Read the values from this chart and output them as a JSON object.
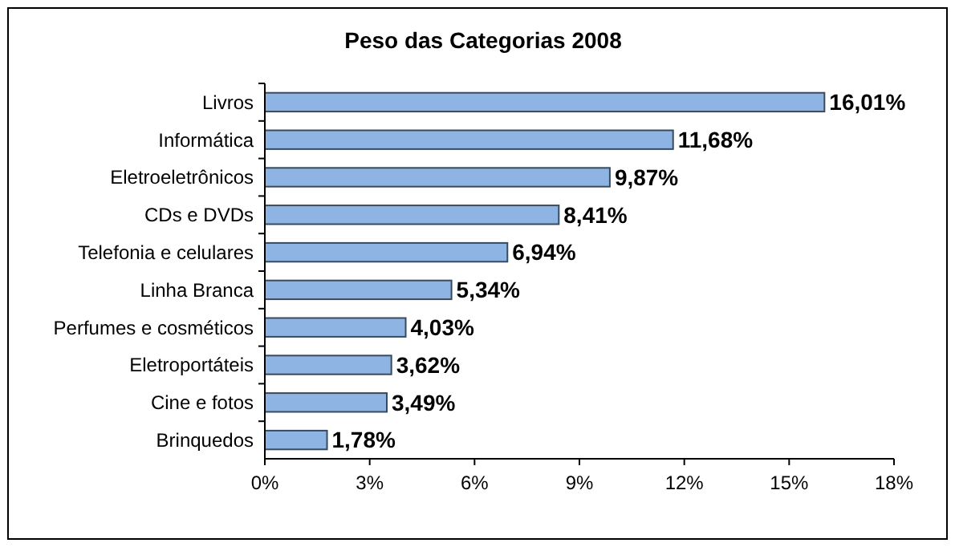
{
  "chart_data": {
    "type": "bar",
    "orientation": "horizontal",
    "title": "Peso das Categorias 2008",
    "categories": [
      "Livros",
      "Informática",
      "Eletroeletrônicos",
      "CDs e DVDs",
      "Telefonia e celulares",
      "Linha Branca",
      "Perfumes e cosméticos",
      "Eletroportáteis",
      "Cine e fotos",
      "Brinquedos"
    ],
    "values": [
      16.01,
      11.68,
      9.87,
      8.41,
      6.94,
      5.34,
      4.03,
      3.62,
      3.49,
      1.78
    ],
    "value_labels": [
      "16,01%",
      "11,68%",
      "9,87%",
      "8,41%",
      "6,94%",
      "5,34%",
      "4,03%",
      "3,62%",
      "3,49%",
      "1,78%"
    ],
    "color": "#8eb4e3",
    "xlim": [
      0,
      18
    ],
    "xticks": [
      {
        "value": 0,
        "label": "0%"
      },
      {
        "value": 3,
        "label": "3%"
      },
      {
        "value": 6,
        "label": "6%"
      },
      {
        "value": 9,
        "label": "9%"
      },
      {
        "value": 12,
        "label": "12%"
      },
      {
        "value": 15,
        "label": "15%"
      },
      {
        "value": 18,
        "label": "18%"
      }
    ],
    "grid": false
  }
}
